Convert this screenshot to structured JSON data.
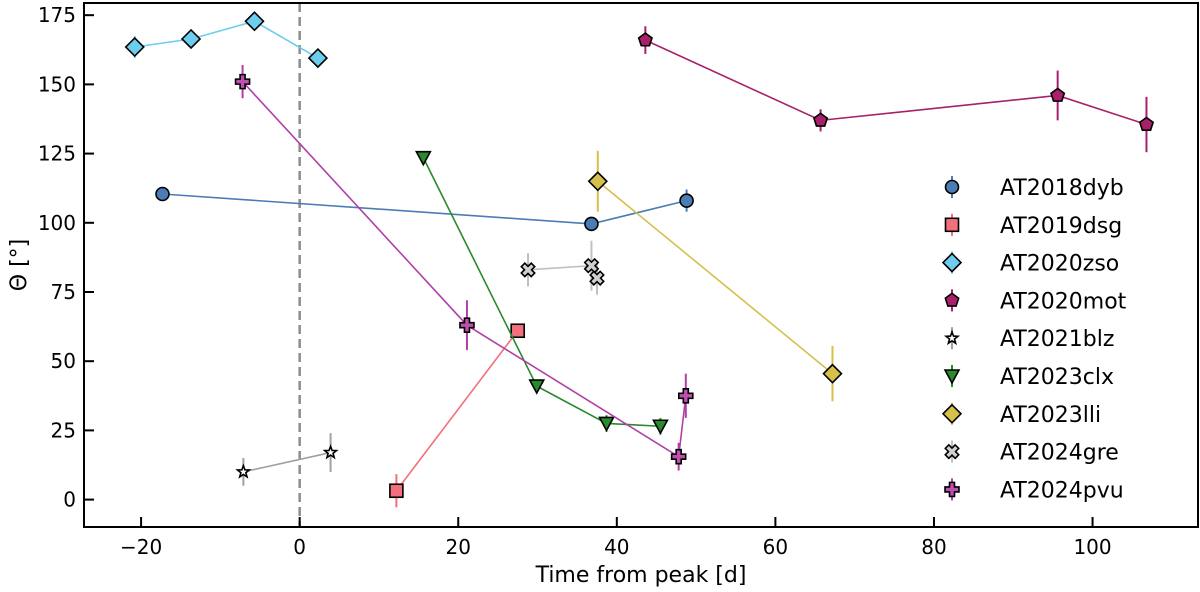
{
  "chart_data": {
    "type": "scatter",
    "xlabel": "Time from peak [d]",
    "ylabel": "Θ [°]",
    "xlim": [
      -27.2,
      113.3
    ],
    "ylim": [
      -9.9,
      179.4
    ],
    "xticks": [
      -20,
      0,
      20,
      40,
      60,
      80,
      100
    ],
    "yticks": [
      0,
      25,
      50,
      75,
      100,
      125,
      150,
      175
    ],
    "grid": false,
    "legend_position": "right",
    "reference_line": {
      "x": 0,
      "style": "dashed",
      "color": "#8c8c8c"
    },
    "series": [
      {
        "name": "AT2018dyb",
        "marker": "circle",
        "color": "#4a7db5",
        "line_color": "#4a7db5",
        "x": [
          -17.3,
          36.8,
          48.8
        ],
        "y": [
          110.4,
          99.6,
          108.0
        ],
        "yerr": [
          2,
          2,
          4
        ]
      },
      {
        "name": "AT2019dsg",
        "marker": "square",
        "color": "#f2707c",
        "line_color": "#f2707c",
        "x": [
          12.2,
          27.5
        ],
        "y": [
          3.2,
          61.0
        ],
        "yerr": [
          6,
          2
        ]
      },
      {
        "name": "AT2020zso",
        "marker": "diamond",
        "color": "#6dcdef",
        "line_color": "#6dcdef",
        "x": [
          -20.8,
          -13.7,
          -5.7,
          2.3
        ],
        "y": [
          163.5,
          166.4,
          172.8,
          159.5
        ],
        "yerr": [
          4,
          2,
          2,
          2
        ]
      },
      {
        "name": "AT2020mot",
        "marker": "pentagon",
        "color": "#a8206a",
        "line_color": "#a8206a",
        "x": [
          43.6,
          65.7,
          95.6,
          106.8
        ],
        "y": [
          166.0,
          137.0,
          146.0,
          135.5
        ],
        "yerr": [
          5,
          4,
          9,
          10
        ]
      },
      {
        "name": "AT2021blz",
        "marker": "star",
        "color": "#ffffff",
        "line_color": "#a0a0a0",
        "x": [
          -7.1,
          3.9
        ],
        "y": [
          10.0,
          17.0
        ],
        "yerr": [
          5,
          7
        ]
      },
      {
        "name": "AT2023clx",
        "marker": "triangle-down",
        "color": "#2a8a2e",
        "line_color": "#2a8a2e",
        "x": [
          15.6,
          29.9,
          38.7,
          45.5
        ],
        "y": [
          123.5,
          41.0,
          27.5,
          26.5
        ],
        "yerr": [
          1,
          2,
          3,
          3
        ]
      },
      {
        "name": "AT2023lli",
        "marker": "diamond",
        "color": "#d4c04a",
        "line_color": "#d4c04a",
        "x": [
          37.6,
          67.2
        ],
        "y": [
          115.0,
          45.5
        ],
        "yerr": [
          11,
          10
        ]
      },
      {
        "name": "AT2024gre",
        "marker": "x-thick",
        "color": "#d0d0d0",
        "line_color": "#c0c0c0",
        "x": [
          28.8,
          36.8,
          37.5
        ],
        "y": [
          83.0,
          84.5,
          80.0
        ],
        "yerr": [
          6,
          9,
          6
        ]
      },
      {
        "name": "AT2024pvu",
        "marker": "plus-thick",
        "color": "#c050b0",
        "line_color": "#b040a8",
        "x": [
          -7.2,
          21.1,
          47.8,
          48.7
        ],
        "y": [
          151.0,
          63.0,
          15.5,
          37.5
        ],
        "yerr": [
          6,
          9,
          5,
          8
        ]
      }
    ]
  }
}
